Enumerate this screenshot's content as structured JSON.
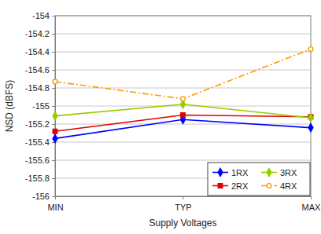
{
  "chart_data": {
    "type": "line",
    "x_label": "Supply Voltages",
    "y_label": "NSD (dBFS)",
    "categories": [
      "MIN",
      "TYP",
      "MAX"
    ],
    "series": [
      {
        "name": "1RX",
        "color": "#0000ff",
        "marker": "diamond",
        "line_style": "solid",
        "values": [
          -155.36,
          -155.15,
          -155.24
        ]
      },
      {
        "name": "2RX",
        "color": "#e00000",
        "marker": "square",
        "line_style": "solid",
        "values": [
          -155.28,
          -155.1,
          -155.12
        ]
      },
      {
        "name": "3RX",
        "color": "#99cc00",
        "marker": "diamond",
        "line_style": "solid",
        "values": [
          -155.11,
          -154.98,
          -155.13
        ]
      },
      {
        "name": "4RX",
        "color": "#ff9900",
        "marker": "circle",
        "line_style": "dashdot",
        "values": [
          -154.73,
          -154.92,
          -154.37
        ]
      }
    ],
    "ylim": [
      -156,
      -154
    ],
    "yticks": [
      -156,
      -155.8,
      -155.6,
      -155.4,
      -155.2,
      -155,
      -154.8,
      -154.6,
      -154.4,
      -154.2,
      -154
    ],
    "grid": true,
    "legend": "lower right"
  }
}
